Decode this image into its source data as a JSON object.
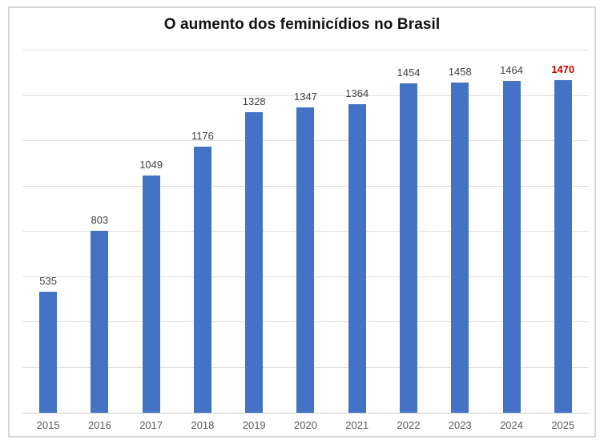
{
  "chart": {
    "title": "O aumento dos feminicídios no Brasil",
    "bar_color": "#4472c4",
    "highlight_label_color": "#c00000",
    "label_color": "#404040",
    "axis_label_color": "#595959",
    "gridline_color": "#dedede",
    "frame_border_color": "#d9d9d9"
  },
  "chart_data": {
    "type": "bar",
    "title": "O aumento dos feminicídios no Brasil",
    "categories": [
      "2015",
      "2016",
      "2017",
      "2018",
      "2019",
      "2020",
      "2021",
      "2022",
      "2023",
      "2024",
      "2025"
    ],
    "values": [
      535,
      803,
      1049,
      1176,
      1328,
      1347,
      1364,
      1454,
      1458,
      1464,
      1470
    ],
    "data_labels_shown": true,
    "highlighted_category": "2025",
    "highlighted_value": 1470,
    "xlabel": "",
    "ylabel": "",
    "ylim": [
      0,
      1600
    ],
    "gridline_interval": 200,
    "y_axis_tick_labels": "hidden",
    "legend": "none",
    "grid": "horizontal"
  }
}
